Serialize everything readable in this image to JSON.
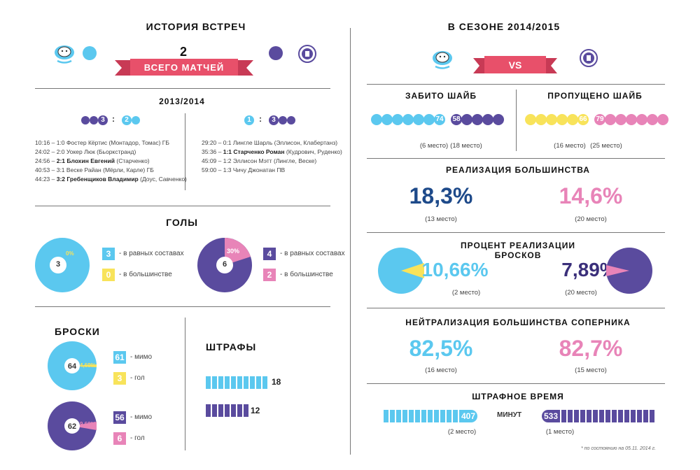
{
  "colors": {
    "light_blue": "#5bc8ef",
    "purple": "#5a4b9e",
    "pink": "#e884b8",
    "yellow": "#f8e35a",
    "red_ribbon": "#e8506a",
    "dark_blue": "#1e4a8a"
  },
  "history": {
    "title": "ИСТОРИЯ ВСТРЕЧ",
    "total_number": "2",
    "total_label": "ВСЕГО МАТЧЕЙ",
    "season": "2013/2014",
    "match1": {
      "home_score": "3",
      "sep": ":",
      "away_score": "2"
    },
    "match2": {
      "home_score": "1",
      "sep": ":",
      "away_score": "3"
    },
    "goals1": [
      {
        "time": "10:16 – 1:0",
        "score": "",
        "name": "",
        "text": "Фостер Кёртис (Монтадор, Томас) ГБ"
      },
      {
        "time": "24:02 – 2:0",
        "score": "",
        "name": "",
        "text": "Уокер Люк (Бьоркстранд)"
      },
      {
        "time": "24:56 –",
        "score": "2:1",
        "name": "Блохин Евгений",
        "text": "(Старченко)"
      },
      {
        "time": "40:53 – 3:1",
        "score": "",
        "name": "",
        "text": "Веске Райан (Мёрли, Карле) ГБ"
      },
      {
        "time": "44:23 –",
        "score": "3:2",
        "name": "Гребенщиков Владимир",
        "text": "(Доус, Савченко)"
      }
    ],
    "goals2": [
      {
        "time": "29:20 – 0:1",
        "score": "",
        "name": "",
        "text": "Лингле Шарль (Эллисон, Клабертанз)"
      },
      {
        "time": "35:36 –",
        "score": "1:1",
        "name": "Старченко Роман",
        "text": "(Кудрович, Руденко)"
      },
      {
        "time": "45:09 – 1:2",
        "score": "",
        "name": "",
        "text": "Эллисон Мэтт (Лингле, Веске)"
      },
      {
        "time": "59:00 – 1:3",
        "score": "",
        "name": "",
        "text": "Чичу Джонатан ПВ"
      }
    ]
  },
  "goals": {
    "title": "ГОЛЫ",
    "left": {
      "total": "3",
      "pct": "0%",
      "even": "3",
      "pp": "0"
    },
    "right": {
      "total": "6",
      "pct": "30%",
      "even": "4",
      "pp": "2"
    },
    "even_label": "- в равных составах",
    "pp_label": "- в большинстве"
  },
  "shots": {
    "title": "БРОСКИ",
    "left": {
      "total": "64",
      "pct": "4,69%",
      "miss": "61",
      "goal": "3",
      "pct_value": 4.69
    },
    "right": {
      "total": "62",
      "pct": "9,68%",
      "miss": "56",
      "goal": "6",
      "pct_value": 9.68
    },
    "miss_label": "- мимо",
    "goal_label": "- гол"
  },
  "penalties": {
    "title": "ШТРАФЫ",
    "left": "18",
    "right": "12",
    "left_count": 10,
    "right_count": 7
  },
  "season": {
    "title": "В СЕЗОНЕ 2014/2015",
    "vs": "VS",
    "scored": {
      "title": "ЗАБИТО ШАЙБ",
      "left": "74",
      "right": "58",
      "left_place": "(6 место)",
      "right_place": "(18 место)"
    },
    "conceded": {
      "title": "ПРОПУЩЕНО ШАЙБ",
      "left": "66",
      "right": "79",
      "left_place": "(16 место)",
      "right_place": "(25 место)"
    },
    "pp": {
      "title": "РЕАЛИЗАЦИЯ БОЛЬШИНСТВА",
      "left": "18,3%",
      "right": "14,6%",
      "left_place": "(13 место)",
      "right_place": "(20 место)"
    },
    "shot_pct": {
      "title1": "ПРОЦЕНТ РЕАЛИЗАЦИИ",
      "title2": "БРОСКОВ",
      "left": "10,66%",
      "right": "7,89%",
      "left_place": "(2 место)",
      "right_place": "(20 место)",
      "left_value": 10.66,
      "right_value": 7.89
    },
    "pk": {
      "title": "НЕЙТРАЛИЗАЦИЯ БОЛЬШИНСТВА СОПЕРНИКА",
      "left": "82,5%",
      "right": "82,7%",
      "left_place": "(16 место)",
      "right_place": "(15 место)"
    },
    "pim": {
      "title": "ШТРАФНОЕ ВРЕМЯ",
      "left": "407",
      "right": "533",
      "unit": "МИНУТ",
      "left_place": "(2 место)",
      "right_place": "(1 место)"
    },
    "footnote": "* по состоянию на 05.11. 2014 г."
  }
}
